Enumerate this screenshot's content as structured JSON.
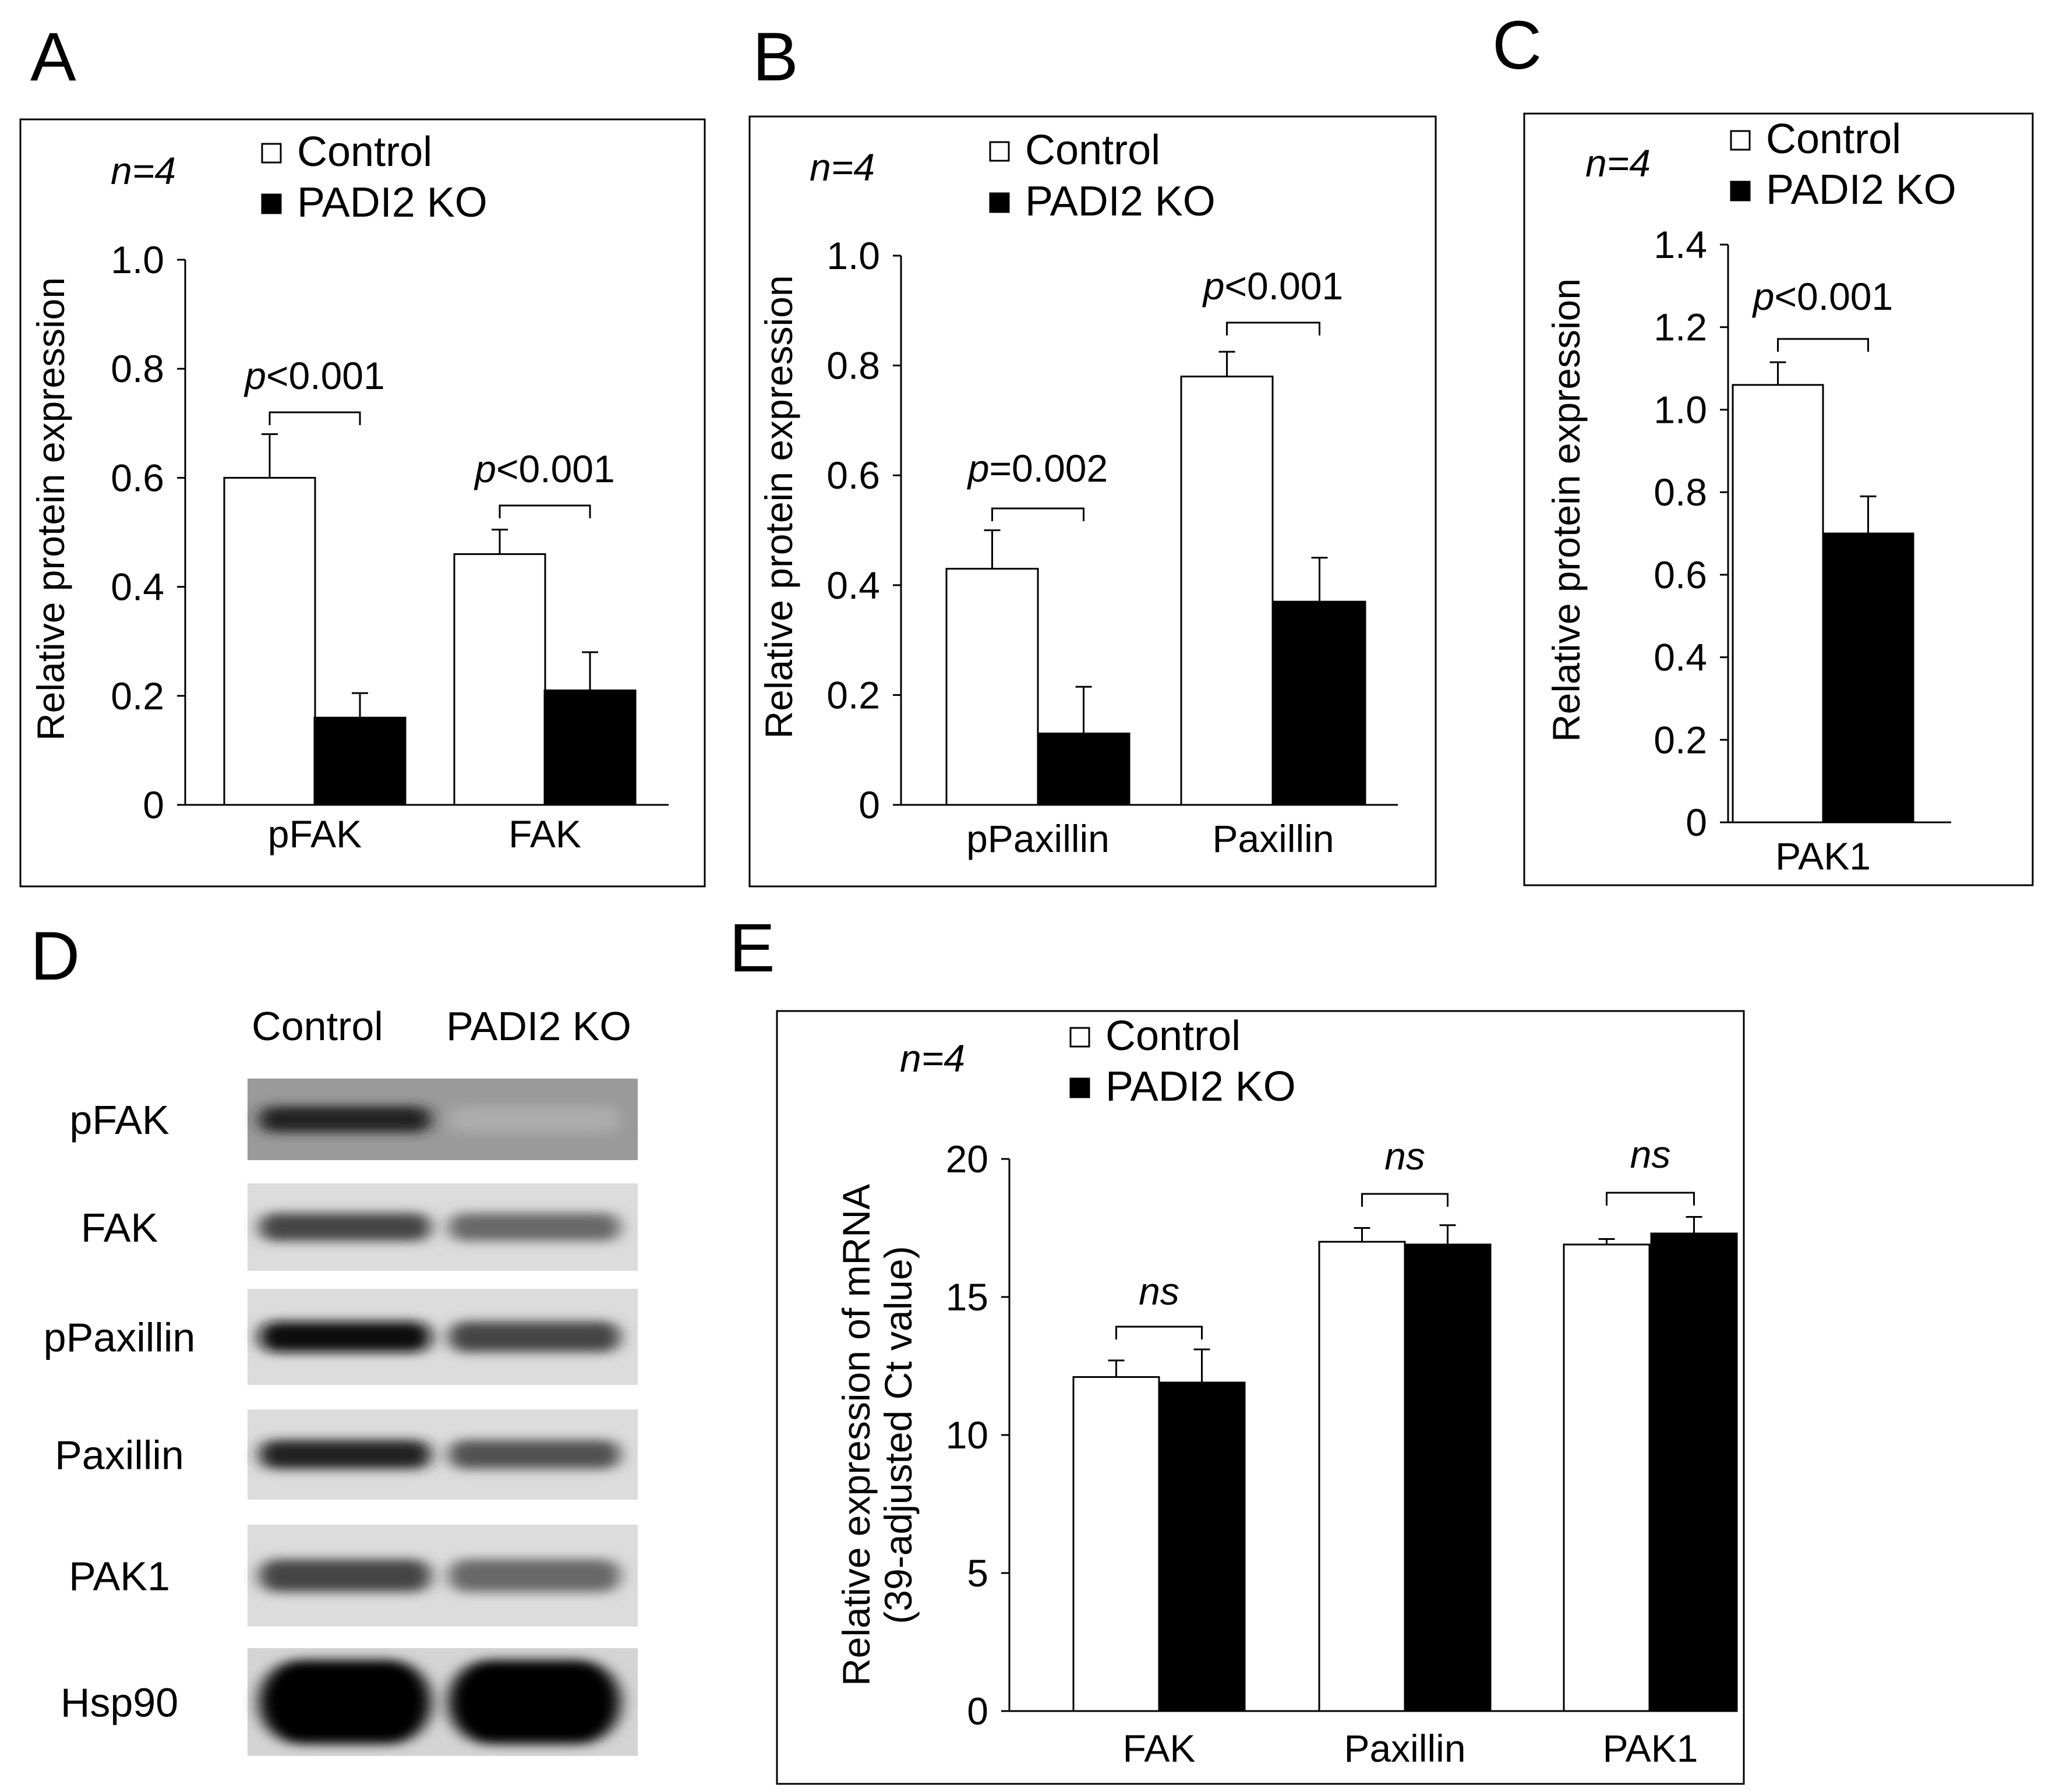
{
  "colors": {
    "control": "#ffffff",
    "ko": "#000000",
    "axis": "#000000"
  },
  "legend": {
    "control": "Control",
    "ko": "PADI2 KO"
  },
  "n_label": {
    "n": "n",
    "value": "=4"
  },
  "chart_data": [
    {
      "panel": "A",
      "type": "bar",
      "ylabel": "Relative protein expression",
      "ylim": [
        0,
        1.0
      ],
      "yticks": [
        "0",
        "0.2",
        "0.4",
        "0.6",
        "0.8",
        "1.0"
      ],
      "categories": [
        "pFAK",
        "FAK"
      ],
      "series": [
        {
          "name": "Control",
          "values": [
            0.6,
            0.46
          ],
          "errors": [
            0.08,
            0.045
          ]
        },
        {
          "name": "PADI2 KO",
          "values": [
            0.16,
            0.21
          ],
          "errors": [
            0.045,
            0.07
          ]
        }
      ],
      "annotations": [
        {
          "italic": "p",
          "text": "<0.001"
        },
        {
          "italic": "p",
          "text": "<0.001"
        }
      ]
    },
    {
      "panel": "B",
      "type": "bar",
      "ylabel": "Relative protein expression",
      "ylim": [
        0,
        1.0
      ],
      "yticks": [
        "0",
        "0.2",
        "0.4",
        "0.6",
        "0.8",
        "1.0"
      ],
      "categories": [
        "pPaxillin",
        "Paxillin"
      ],
      "series": [
        {
          "name": "Control",
          "values": [
            0.43,
            0.78
          ],
          "errors": [
            0.07,
            0.045
          ]
        },
        {
          "name": "PADI2 KO",
          "values": [
            0.13,
            0.37
          ],
          "errors": [
            0.085,
            0.08
          ]
        }
      ],
      "annotations": [
        {
          "italic": "p",
          "text": "=0.002"
        },
        {
          "italic": "p",
          "text": "<0.001"
        }
      ]
    },
    {
      "panel": "C",
      "type": "bar",
      "ylabel": "Relative protein expression",
      "ylim": [
        0,
        1.4
      ],
      "yticks": [
        "0",
        "0.2",
        "0.4",
        "0.6",
        "0.8",
        "1.0",
        "1.2",
        "1.4"
      ],
      "categories": [
        "PAK1"
      ],
      "series": [
        {
          "name": "Control",
          "values": [
            1.06
          ],
          "errors": [
            0.055
          ]
        },
        {
          "name": "PADI2 KO",
          "values": [
            0.7
          ],
          "errors": [
            0.09
          ]
        }
      ],
      "annotations": [
        {
          "italic": "p",
          "text": "<0.001"
        }
      ]
    },
    {
      "panel": "E",
      "type": "bar",
      "ylabel": "Relative expression of mRNA",
      "ylabel2": "(39-adjusted Ct value)",
      "ylim": [
        0,
        20
      ],
      "yticks": [
        "0",
        "5",
        "10",
        "15",
        "20"
      ],
      "categories": [
        "FAK",
        "Paxillin",
        "PAK1"
      ],
      "series": [
        {
          "name": "Control",
          "values": [
            12.1,
            17.0,
            16.9
          ],
          "errors": [
            0.6,
            0.5,
            0.2
          ]
        },
        {
          "name": "PADI2 KO",
          "values": [
            11.9,
            16.9,
            17.3
          ],
          "errors": [
            1.2,
            0.7,
            0.6
          ]
        }
      ],
      "annotations": [
        {
          "italic": "ns",
          "text": ""
        },
        {
          "italic": "ns",
          "text": ""
        },
        {
          "italic": "ns",
          "text": ""
        }
      ]
    }
  ],
  "blot": {
    "panel": "D",
    "columns": [
      "Control",
      "PADI2 KO"
    ],
    "rows": [
      {
        "label": "pFAK",
        "control_intensity": 0.85,
        "ko_intensity": 0.25
      },
      {
        "label": "FAK",
        "control_intensity": 0.7,
        "ko_intensity": 0.55
      },
      {
        "label": "pPaxillin",
        "control_intensity": 0.95,
        "ko_intensity": 0.7
      },
      {
        "label": "Paxillin",
        "control_intensity": 0.85,
        "ko_intensity": 0.65
      },
      {
        "label": "PAK1",
        "control_intensity": 0.7,
        "ko_intensity": 0.55
      },
      {
        "label": "Hsp90",
        "control_intensity": 1.0,
        "ko_intensity": 1.0
      }
    ]
  }
}
